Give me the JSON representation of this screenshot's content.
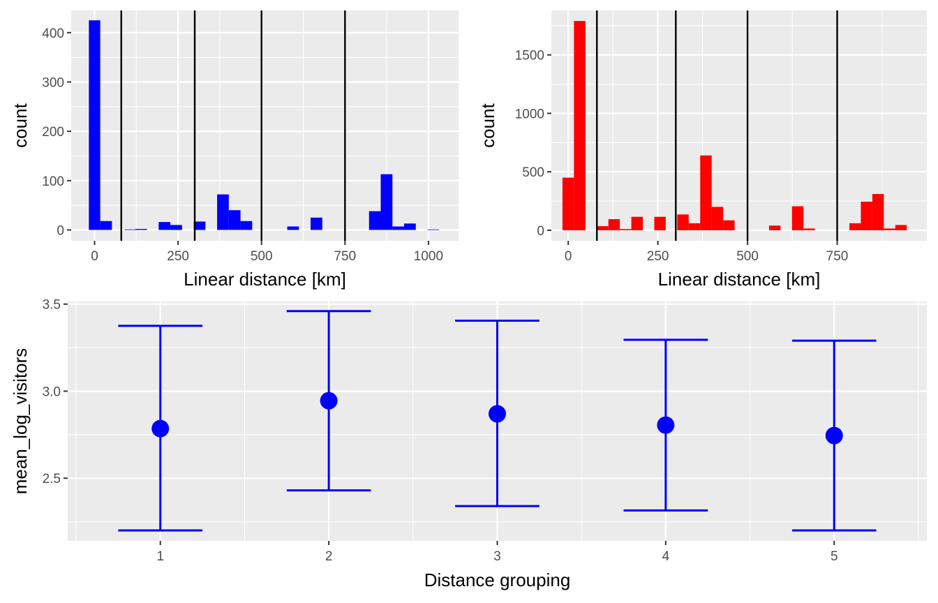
{
  "chart_data": [
    {
      "type": "bar",
      "subtype": "histogram",
      "xlabel": "Linear distance [km]",
      "ylabel": "count",
      "xlim": [
        -70,
        1090
      ],
      "ylim": [
        -22,
        445
      ],
      "xticks": [
        0,
        250,
        500,
        750,
        1000
      ],
      "xtick_labels": [
        "0",
        "250",
        "500",
        "750",
        "1000"
      ],
      "yticks": [
        0,
        100,
        200,
        300,
        400
      ],
      "ytick_labels": [
        "0",
        "100",
        "200",
        "300",
        "400"
      ],
      "bar_color": "#0000ff",
      "bins": [
        {
          "x0": -17,
          "x1": 17,
          "count": 425
        },
        {
          "x0": 17,
          "x1": 52,
          "count": 18
        },
        {
          "x0": 90,
          "x1": 122,
          "count": 1
        },
        {
          "x0": 122,
          "x1": 157,
          "count": 2
        },
        {
          "x0": 192,
          "x1": 227,
          "count": 16
        },
        {
          "x0": 227,
          "x1": 262,
          "count": 10
        },
        {
          "x0": 297,
          "x1": 332,
          "count": 17
        },
        {
          "x0": 367,
          "x1": 402,
          "count": 72
        },
        {
          "x0": 402,
          "x1": 437,
          "count": 40
        },
        {
          "x0": 437,
          "x1": 472,
          "count": 18
        },
        {
          "x0": 577,
          "x1": 612,
          "count": 7
        },
        {
          "x0": 647,
          "x1": 682,
          "count": 25
        },
        {
          "x0": 822,
          "x1": 857,
          "count": 38
        },
        {
          "x0": 857,
          "x1": 892,
          "count": 113
        },
        {
          "x0": 892,
          "x1": 927,
          "count": 7
        },
        {
          "x0": 927,
          "x1": 962,
          "count": 13
        },
        {
          "x0": 997,
          "x1": 1032,
          "count": 1
        }
      ],
      "vlines": [
        80,
        300,
        500,
        750
      ]
    },
    {
      "type": "bar",
      "subtype": "histogram",
      "xlabel": "Linear distance [km]",
      "ylabel": "count",
      "xlim": [
        -47,
        1000
      ],
      "ylim": [
        -90,
        1880
      ],
      "xticks": [
        0,
        250,
        500,
        750
      ],
      "xtick_labels": [
        "0",
        "250",
        "500",
        "750"
      ],
      "yticks": [
        0,
        500,
        1000,
        1500
      ],
      "ytick_labels": [
        "0",
        "500",
        "1000",
        "1500"
      ],
      "bar_color": "#ff0000",
      "bins": [
        {
          "x0": -16,
          "x1": 16,
          "count": 450
        },
        {
          "x0": 16,
          "x1": 48,
          "count": 1790
        },
        {
          "x0": 80,
          "x1": 112,
          "count": 35
        },
        {
          "x0": 112,
          "x1": 144,
          "count": 95
        },
        {
          "x0": 144,
          "x1": 176,
          "count": 10
        },
        {
          "x0": 176,
          "x1": 208,
          "count": 115
        },
        {
          "x0": 240,
          "x1": 272,
          "count": 115
        },
        {
          "x0": 304,
          "x1": 336,
          "count": 135
        },
        {
          "x0": 336,
          "x1": 368,
          "count": 60
        },
        {
          "x0": 368,
          "x1": 400,
          "count": 640
        },
        {
          "x0": 400,
          "x1": 432,
          "count": 200
        },
        {
          "x0": 432,
          "x1": 464,
          "count": 85
        },
        {
          "x0": 560,
          "x1": 592,
          "count": 40
        },
        {
          "x0": 624,
          "x1": 656,
          "count": 205
        },
        {
          "x0": 656,
          "x1": 688,
          "count": 15
        },
        {
          "x0": 784,
          "x1": 816,
          "count": 60
        },
        {
          "x0": 816,
          "x1": 848,
          "count": 245
        },
        {
          "x0": 848,
          "x1": 880,
          "count": 310
        },
        {
          "x0": 880,
          "x1": 912,
          "count": 15
        },
        {
          "x0": 912,
          "x1": 944,
          "count": 45
        }
      ],
      "vlines": [
        80,
        300,
        500,
        750
      ]
    },
    {
      "type": "scatter",
      "subtype": "errorbar",
      "xlabel": "Distance grouping",
      "ylabel": "mean_log_visitors",
      "xlim": [
        0.45,
        5.55
      ],
      "ylim": [
        2.14,
        3.515
      ],
      "xticks": [
        1,
        2,
        3,
        4,
        5
      ],
      "xtick_labels": [
        "1",
        "2",
        "3",
        "4",
        "5"
      ],
      "yticks": [
        2.5,
        3.0,
        3.5
      ],
      "ytick_labels": [
        "2.5",
        "3.0",
        "3.5"
      ],
      "color": "#0000ff",
      "points": [
        {
          "x": 1,
          "mean": 2.785,
          "low": 2.2,
          "high": 3.375
        },
        {
          "x": 2,
          "mean": 2.945,
          "low": 2.43,
          "high": 3.46
        },
        {
          "x": 3,
          "mean": 2.87,
          "low": 2.34,
          "high": 3.405
        },
        {
          "x": 4,
          "mean": 2.805,
          "low": 2.315,
          "high": 3.295
        },
        {
          "x": 5,
          "mean": 2.745,
          "low": 2.2,
          "high": 3.29
        }
      ]
    }
  ]
}
